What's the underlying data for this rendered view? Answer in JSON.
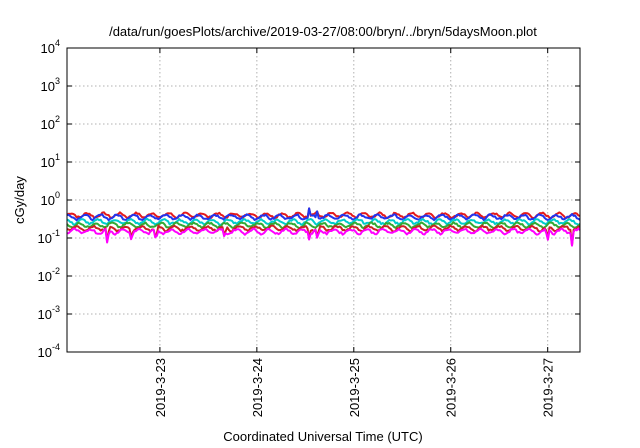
{
  "chart_data": {
    "type": "line",
    "title": "/data/run/goesPlots/archive/2019-03-27/08:00/bryn/../bryn/5daysMoon.plot",
    "xlabel": "Coordinated Universal Time (UTC)",
    "ylabel": "cGy/day",
    "yscale": "log",
    "ylim": [
      0.0001,
      10000
    ],
    "xlim": [
      "2019-03-22 01:00",
      "2019-03-27 08:00"
    ],
    "grid": true,
    "legend": "none",
    "y_ticks": [
      {
        "base": "10",
        "exp": "-4",
        "value": 0.0001
      },
      {
        "base": "10",
        "exp": "-3",
        "value": 0.001
      },
      {
        "base": "10",
        "exp": "-2",
        "value": 0.01
      },
      {
        "base": "10",
        "exp": "-1",
        "value": 0.1
      },
      {
        "base": "10",
        "exp": "0",
        "value": 1
      },
      {
        "base": "10",
        "exp": "1",
        "value": 10
      },
      {
        "base": "10",
        "exp": "2",
        "value": 100
      },
      {
        "base": "10",
        "exp": "3",
        "value": 1000
      },
      {
        "base": "10",
        "exp": "4",
        "value": 10000
      }
    ],
    "x_ticks": [
      {
        "label": "2019-3-23",
        "value": "2019-03-23 00:00"
      },
      {
        "label": "2019-3-24",
        "value": "2019-03-24 00:00"
      },
      {
        "label": "2019-3-25",
        "value": "2019-03-25 00:00"
      },
      {
        "label": "2019-3-26",
        "value": "2019-03-26 00:00"
      },
      {
        "label": "2019-3-27",
        "value": "2019-03-27 00:00"
      }
    ],
    "series": [
      {
        "color": "#e41a1c",
        "level": 0.4
      },
      {
        "color": "#2233ee",
        "level": 0.36
      },
      {
        "color": "#00cccc",
        "level": 0.27
      },
      {
        "color": "#33aa33",
        "level": 0.22
      },
      {
        "color": "#cc2222",
        "level": 0.18
      },
      {
        "color": "#ff00ff",
        "level": 0.15
      }
    ],
    "spikes": [
      {
        "x": "2019-03-22 11:00",
        "min": 0.06
      },
      {
        "x": "2019-03-22 17:00",
        "min": 0.07
      },
      {
        "x": "2019-03-22 23:00",
        "min": 0.075
      },
      {
        "x": "2019-03-23 16:00",
        "min": 0.1
      },
      {
        "x": "2019-03-24 13:00",
        "min": 0.08,
        "max": 0.6
      },
      {
        "x": "2019-03-24 15:00",
        "min": 0.09,
        "max": 0.5
      },
      {
        "x": "2019-03-27 00:00",
        "min": 0.08
      },
      {
        "x": "2019-03-27 06:00",
        "min": 0.06
      }
    ]
  }
}
